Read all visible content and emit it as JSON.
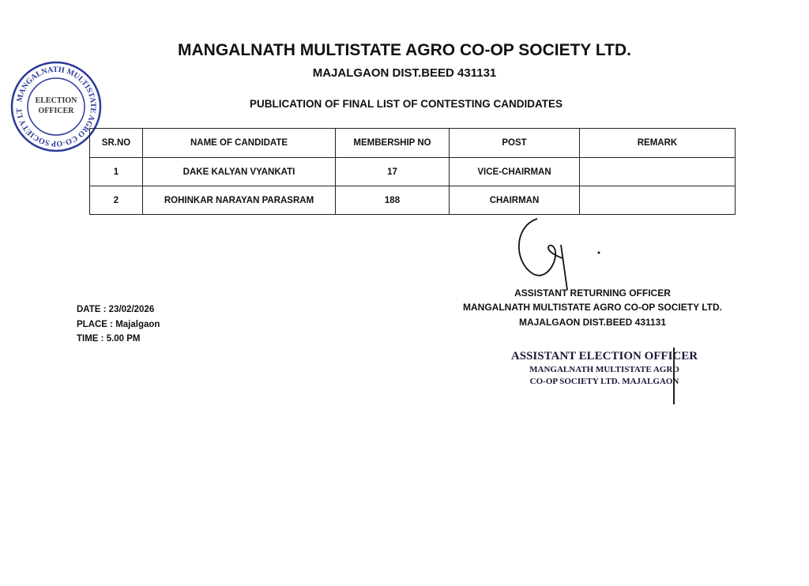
{
  "header": {
    "title": "MANGALNATH MULTISTATE AGRO CO-OP SOCIETY LTD.",
    "subtitle": "MAJALGAON DIST.BEED 431131",
    "publication": "PUBLICATION OF FINAL LIST OF CONTESTING CANDIDATES"
  },
  "seal": {
    "ring_text": "MANGALNATH MULTISTATE AGRO CO-OP SOCIETY LTD. MAJALGAON",
    "center_text": "ELECTION OFFICER",
    "color": "#2b3a9a"
  },
  "table": {
    "columns": [
      "SR.NO",
      "NAME OF CANDIDATE",
      "MEMBERSHIP NO",
      "POST",
      "REMARK"
    ],
    "rows": [
      [
        "1",
        "DAKE KALYAN VYANKATI",
        "17",
        "VICE-CHAIRMAN",
        ""
      ],
      [
        "2",
        "ROHINKAR NARAYAN PARASRAM",
        "188",
        "CHAIRMAN",
        ""
      ]
    ]
  },
  "meta": {
    "date": "DATE : 23/02/2026",
    "place": "PLACE : Majalgaon",
    "time": "TIME : 5.00 PM"
  },
  "signatory": {
    "line1": "ASSISTANT RETURNING OFFICER",
    "line2": "MANGALNATH MULTISTATE AGRO CO-OP SOCIETY LTD.",
    "line3": "MAJALGAON DIST.BEED 431131"
  },
  "stamp": {
    "line1": "ASSISTANT ELECTION OFFICER",
    "line2": "MANGALNATH MULTISTATE AGRO",
    "line3": "CO-OP SOCIETY LTD. MAJALGAON"
  }
}
